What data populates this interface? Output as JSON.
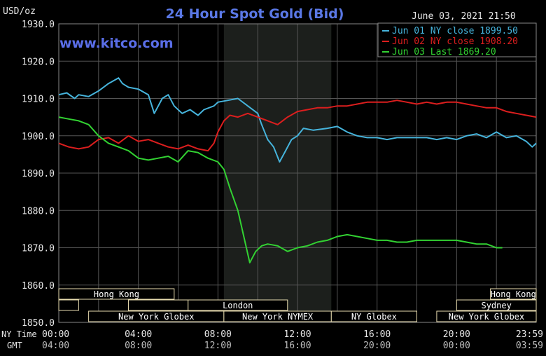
{
  "chart_data": {
    "type": "line",
    "title": "24 Hour Spot Gold (Bid)",
    "subtitle": "June 03, 2021 21:50",
    "watermark": "www.kitco.com",
    "ylabel": "USD/oz",
    "ylim": [
      1850,
      1930
    ],
    "yticks": [
      "1930.0",
      "1920.0",
      "1910.0",
      "1900.0",
      "1890.0",
      "1880.0",
      "1870.0",
      "1860.0",
      "1850.0"
    ],
    "xlim": [
      0,
      24
    ],
    "xticks_ny": [
      "00:00",
      "04:00",
      "08:00",
      "12:00",
      "16:00",
      "20:00",
      "23:59"
    ],
    "xticks_gmt": [
      "04:00",
      "08:00",
      "12:00",
      "16:00",
      "20:00",
      "00:00",
      "03:59"
    ],
    "row_label_ny": "NY Time",
    "row_label_gmt": "GMT",
    "grid": true,
    "legend_position": "top-right",
    "colors": {
      "background": "#000000",
      "grid": "#555555",
      "axis_text": "#e6e6e6",
      "title": "#5a78e6",
      "watermark": "#5a6ee8",
      "highlight": "#1c1f1c",
      "session_border": "#e8dcb0",
      "session_text": "#ffffff"
    },
    "highlight_range": [
      8.3,
      13.7
    ],
    "series": [
      {
        "name": "Jun 01 NY close 1899.50",
        "color": "#46b4dc",
        "x": [
          0,
          0.4,
          0.8,
          1.0,
          1.5,
          2.0,
          2.5,
          3.0,
          3.2,
          3.5,
          4.0,
          4.5,
          4.8,
          5.2,
          5.5,
          5.8,
          6.2,
          6.6,
          7.0,
          7.3,
          7.8,
          8.0,
          8.5,
          9.0,
          9.5,
          10.0,
          10.2,
          10.5,
          10.8,
          11.1,
          11.4,
          11.7,
          12.0,
          12.3,
          12.8,
          13.5,
          14.0,
          14.5,
          15.0,
          15.5,
          16.0,
          16.5,
          17.0,
          17.5,
          18.0,
          18.5,
          19.0,
          19.5,
          20.0,
          20.5,
          21.0,
          21.5,
          22.0,
          22.5,
          23.0,
          23.5,
          23.8,
          24.0
        ],
        "y": [
          1911,
          1911.5,
          1910,
          1911,
          1910.5,
          1912,
          1914,
          1915.5,
          1914,
          1913,
          1912.5,
          1911,
          1906,
          1910,
          1911,
          1908,
          1906,
          1907,
          1905.5,
          1907,
          1908,
          1909,
          1909.5,
          1910,
          1908,
          1906,
          1903,
          1899,
          1897,
          1893,
          1896,
          1899,
          1900,
          1902,
          1901.5,
          1902,
          1902.5,
          1901,
          1900,
          1899.5,
          1899.5,
          1899,
          1899.5,
          1899.5,
          1899.5,
          1899.5,
          1899,
          1899.5,
          1899,
          1900,
          1900.5,
          1899.5,
          1901,
          1899.5,
          1900,
          1898.5,
          1897,
          1898
        ]
      },
      {
        "name": "Jun 02 NY close 1908.20",
        "color": "#dc1e1e",
        "x": [
          0,
          0.5,
          1.0,
          1.5,
          2.0,
          2.5,
          3.0,
          3.5,
          4.0,
          4.5,
          5.0,
          5.5,
          6.0,
          6.5,
          7.0,
          7.5,
          7.8,
          8.0,
          8.3,
          8.6,
          9.0,
          9.5,
          10.0,
          10.5,
          11.0,
          11.5,
          12.0,
          12.5,
          13.0,
          13.5,
          14.0,
          14.5,
          15.0,
          15.5,
          16.0,
          16.5,
          17.0,
          17.5,
          18.0,
          18.5,
          19.0,
          19.5,
          20.0,
          20.5,
          21.0,
          21.5,
          22.0,
          22.5,
          23.0,
          23.5,
          24.0
        ],
        "y": [
          1898,
          1897,
          1896.5,
          1897,
          1899,
          1899.5,
          1898,
          1900,
          1898.5,
          1899,
          1898,
          1897,
          1896.5,
          1897.5,
          1896.5,
          1896,
          1898,
          1901,
          1904,
          1905.5,
          1905,
          1906,
          1905,
          1904,
          1903,
          1905,
          1906.5,
          1907,
          1907.5,
          1907.5,
          1908,
          1908,
          1908.5,
          1909,
          1909,
          1909,
          1909.5,
          1909,
          1908.5,
          1909,
          1908.5,
          1909,
          1909,
          1908.5,
          1908,
          1907.5,
          1907.5,
          1906.5,
          1906,
          1905.5,
          1905
        ]
      },
      {
        "name": "Jun 03 Last 1869.20",
        "color": "#32d232",
        "x": [
          0,
          0.5,
          1.0,
          1.5,
          2.0,
          2.5,
          3.0,
          3.5,
          4.0,
          4.5,
          5.0,
          5.5,
          6.0,
          6.5,
          7.0,
          7.5,
          8.0,
          8.3,
          8.6,
          9.0,
          9.3,
          9.6,
          9.9,
          10.2,
          10.5,
          11.0,
          11.5,
          12.0,
          12.5,
          13.0,
          13.5,
          14.0,
          14.5,
          15.0,
          15.5,
          16.0,
          16.5,
          17.0,
          17.5,
          18.0,
          18.5,
          19.0,
          19.5,
          20.0,
          20.5,
          21.0,
          21.5,
          22.0,
          22.3
        ],
        "y": [
          1905,
          1904.5,
          1904,
          1903,
          1900,
          1898,
          1897,
          1896,
          1894,
          1893.5,
          1894,
          1894.5,
          1893,
          1896,
          1895.5,
          1894,
          1893,
          1891,
          1886,
          1880,
          1873,
          1866,
          1869,
          1870.5,
          1871,
          1870.5,
          1869,
          1870,
          1870.5,
          1871.5,
          1872,
          1873,
          1873.5,
          1873,
          1872.5,
          1872,
          1872,
          1871.5,
          1871.5,
          1872,
          1872,
          1872,
          1872,
          1872,
          1871.5,
          1871,
          1871,
          1870,
          1870
        ]
      }
    ],
    "sessions": [
      {
        "label": "Hong Kong",
        "row": 0,
        "start": 0,
        "end": 5.8
      },
      {
        "label": "",
        "row": 1,
        "start": 0,
        "end": 1.0
      },
      {
        "label": "",
        "row": 1,
        "start": 3.5,
        "end": 6.5
      },
      {
        "label": "London",
        "row": 1,
        "start": 6.5,
        "end": 11.5
      },
      {
        "label": "New York Globex",
        "row": 2,
        "start": 1.5,
        "end": 8.3
      },
      {
        "label": "New York NYMEX",
        "row": 2,
        "start": 8.3,
        "end": 13.7
      },
      {
        "label": "NY Globex",
        "row": 2,
        "start": 13.7,
        "end": 18.0
      },
      {
        "label": "Hong Kong",
        "row": 0,
        "start": 21.7,
        "end": 24.0
      },
      {
        "label": "Sydney",
        "row": 1,
        "start": 20.0,
        "end": 24.0
      },
      {
        "label": "New York Globex",
        "row": 2,
        "start": 19.0,
        "end": 24.0
      }
    ]
  }
}
